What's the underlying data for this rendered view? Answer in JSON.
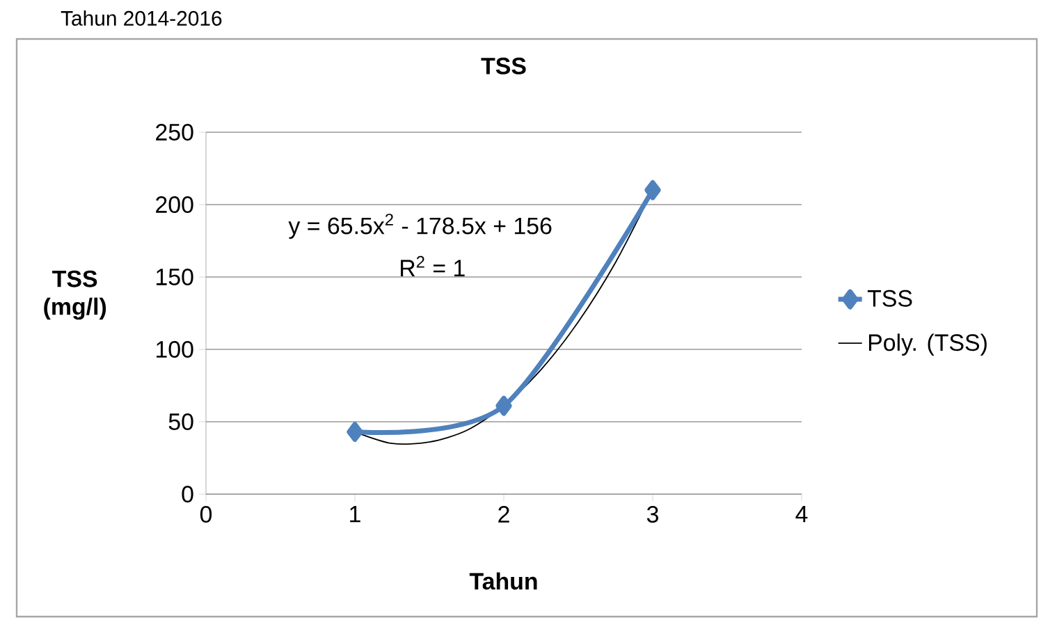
{
  "chart_data": {
    "type": "line",
    "title": "TSS",
    "xlabel": "Tahun",
    "ylabel": "TSS (mg/l)",
    "annotations": [
      "Tahun 2014-2016",
      "y = 65.5x$^{2}$ - 178.5x + 156",
      "R$^{2}$ = 1"
    ],
    "xlim": [
      0,
      4
    ],
    "xticks": [
      0,
      1,
      2,
      3,
      4
    ],
    "ylim": [
      0,
      250
    ],
    "yticks": [
      0,
      50,
      100,
      150,
      200,
      250
    ],
    "grid": "y",
    "legend": "right",
    "series": [
      {
        "name": "TSS",
        "color": "#4f81bd",
        "marker": "diamond",
        "x": [
          1,
          2,
          3
        ],
        "values": [
          43,
          61,
          210
        ]
      },
      {
        "name": "Poly. (TSS)",
        "color": "#000000",
        "marker": "none",
        "x": [
          1,
          1.25,
          1.5,
          1.75,
          2,
          2.25,
          2.5,
          2.75,
          3
        ],
        "values": [
          43,
          35,
          36,
          44,
          61,
          86,
          119,
          160,
          210
        ]
      }
    ]
  }
}
